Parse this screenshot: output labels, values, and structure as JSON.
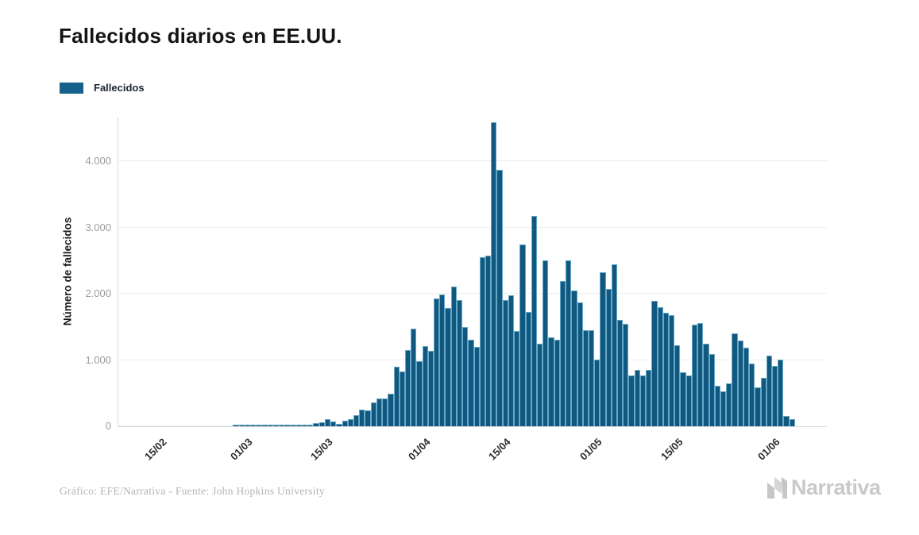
{
  "header": {
    "title": "Fallecidos diarios en EE.UU."
  },
  "legend": {
    "label": "Fallecidos",
    "swatch_color": "#15618c"
  },
  "footer": {
    "credit": "Gráfico: EFE/Narrativa - Fuente: John Hopkins University",
    "logo_text": "Narrativa"
  },
  "colors": {
    "bar_fill": "#10587f",
    "bar_stroke": "#67a8c6",
    "grid": "#ececec",
    "axis": "#d9d9d9",
    "ytick_text": "#9b9b9b",
    "xtick_text": "#2b2b2b",
    "title_text": "#141414",
    "credit_text": "#b5b5b5",
    "logo_gray": "#c9c9c9"
  },
  "chart_data": {
    "type": "bar",
    "title": "Fallecidos diarios en EE.UU.",
    "xlabel": "",
    "ylabel": "Número de fallecidos",
    "ylim": [
      0,
      4659
    ],
    "grid": "horizontal-only",
    "legend_position": "top-left",
    "yticks": {
      "values": [
        0,
        1000,
        2000,
        3000,
        4000
      ],
      "labels": [
        "0",
        "1.000",
        "2.000",
        "3.000",
        "4.000"
      ]
    },
    "xtick_labels": [
      "15/02",
      "01/03",
      "15/03",
      "01/04",
      "15/04",
      "01/05",
      "15/05",
      "01/06"
    ],
    "series": [
      {
        "name": "Fallecidos",
        "color": "#10587f",
        "x": [
          "10/02",
          "11/02",
          "12/02",
          "13/02",
          "14/02",
          "15/02",
          "16/02",
          "17/02",
          "18/02",
          "19/02",
          "20/02",
          "21/02",
          "22/02",
          "23/02",
          "24/02",
          "25/02",
          "26/02",
          "27/02",
          "28/02",
          "29/02",
          "01/03",
          "02/03",
          "03/03",
          "04/03",
          "05/03",
          "06/03",
          "07/03",
          "08/03",
          "09/03",
          "10/03",
          "11/03",
          "12/03",
          "13/03",
          "14/03",
          "15/03",
          "16/03",
          "17/03",
          "18/03",
          "19/03",
          "20/03",
          "21/03",
          "22/03",
          "23/03",
          "24/03",
          "25/03",
          "26/03",
          "27/03",
          "28/03",
          "29/03",
          "30/03",
          "31/03",
          "01/04",
          "02/04",
          "03/04",
          "04/04",
          "05/04",
          "06/04",
          "07/04",
          "08/04",
          "09/04",
          "10/04",
          "11/04",
          "12/04",
          "13/04",
          "14/04",
          "15/04",
          "16/04",
          "17/04",
          "18/04",
          "19/04",
          "20/04",
          "21/04",
          "22/04",
          "23/04",
          "24/04",
          "25/04",
          "26/04",
          "27/04",
          "28/04",
          "29/04",
          "30/04",
          "01/05",
          "02/05",
          "03/05",
          "04/05",
          "05/05",
          "06/05",
          "07/05",
          "08/05",
          "09/05",
          "10/05",
          "11/05",
          "12/05",
          "13/05",
          "14/05",
          "15/05",
          "16/05",
          "17/05",
          "18/05",
          "19/05",
          "20/05",
          "21/05",
          "22/05",
          "23/05",
          "24/05",
          "25/05",
          "26/05",
          "27/05",
          "28/05",
          "29/05",
          "30/05",
          "31/05",
          "01/06",
          "02/06",
          "03/06",
          "04/06",
          "05/06",
          "06/06"
        ],
        "values": [
          0,
          0,
          0,
          0,
          0,
          0,
          0,
          0,
          0,
          0,
          0,
          0,
          0,
          0,
          0,
          0,
          0,
          1,
          0,
          1,
          6,
          18,
          21,
          15,
          11,
          8,
          10,
          15,
          14,
          12,
          15,
          18,
          21,
          26,
          47,
          60,
          110,
          68,
          36,
          84,
          110,
          164,
          252,
          236,
          363,
          423,
          423,
          495,
          898,
          827,
          1154,
          1470,
          982,
          1210,
          1142,
          1929,
          1989,
          1781,
          2108,
          1901,
          1501,
          1302,
          1200,
          2552,
          2574,
          4589,
          3870,
          1901,
          1980,
          1441,
          2748,
          1729,
          3171,
          1250,
          2500,
          1342,
          1300,
          2188,
          2500,
          2048,
          1869,
          1447,
          1447,
          1010,
          2328,
          2068,
          2448,
          1609,
          1542,
          770,
          850,
          770,
          850,
          1889,
          1801,
          1709,
          1673,
          1222,
          811,
          770,
          1533,
          1561,
          1250,
          1090,
          611,
          523,
          651,
          1402,
          1290,
          1190,
          950,
          591,
          731,
          1070,
          910,
          1010,
          150,
          110
        ]
      }
    ]
  }
}
